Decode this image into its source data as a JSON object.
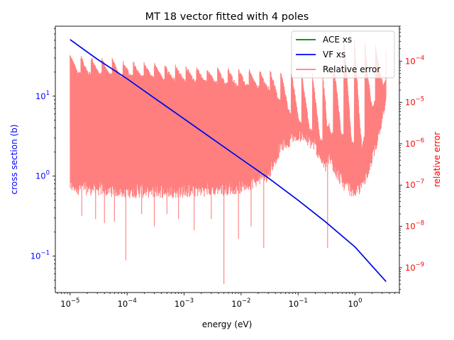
{
  "chart_data": {
    "type": "line",
    "title": "MT 18 vector fitted with 4 poles",
    "xlabel": "energy (eV)",
    "ylabel_left": "cross section (b)",
    "ylabel_right": "relative error",
    "x_scale": "log",
    "y_left_scale": "log",
    "y_right_scale": "log",
    "xlim": [
      5.5e-06,
      6.0
    ],
    "ylim_left": [
      0.035,
      75
    ],
    "ylim_right": [
      2.5e-10,
      0.0007
    ],
    "x_ticks": [
      {
        "value": 1e-05,
        "base": "10",
        "exp": "−5"
      },
      {
        "value": 0.0001,
        "base": "10",
        "exp": "−4"
      },
      {
        "value": 0.001,
        "base": "10",
        "exp": "−3"
      },
      {
        "value": 0.01,
        "base": "10",
        "exp": "−2"
      },
      {
        "value": 0.1,
        "base": "10",
        "exp": "−1"
      },
      {
        "value": 1,
        "base": "10",
        "exp": "0"
      }
    ],
    "y_left_ticks": [
      {
        "value": 0.1,
        "base": "10",
        "exp": "−1"
      },
      {
        "value": 1,
        "base": "10",
        "exp": "0"
      },
      {
        "value": 10,
        "base": "10",
        "exp": "1"
      }
    ],
    "y_right_ticks": [
      {
        "value": 1e-09,
        "base": "10",
        "exp": "−9"
      },
      {
        "value": 1e-08,
        "base": "10",
        "exp": "−8"
      },
      {
        "value": 1e-07,
        "base": "10",
        "exp": "−7"
      },
      {
        "value": 1e-06,
        "base": "10",
        "exp": "−6"
      },
      {
        "value": 1e-05,
        "base": "10",
        "exp": "−5"
      },
      {
        "value": 0.0001,
        "base": "10",
        "exp": "−4"
      }
    ],
    "legend_position": "top-right",
    "series": [
      {
        "name": "ACE xs",
        "axis": "left",
        "color": "#008000",
        "x": [
          1e-05,
          3e-05,
          0.0001,
          0.0003,
          0.001,
          0.003,
          0.01,
          0.03,
          0.1,
          0.3,
          1,
          3.5
        ],
        "y": [
          51,
          29,
          16.5,
          9.5,
          5.2,
          3.0,
          1.64,
          0.95,
          0.5,
          0.27,
          0.13,
          0.048
        ]
      },
      {
        "name": "VF xs",
        "axis": "left",
        "color": "#0000ff",
        "x": [
          1e-05,
          3e-05,
          0.0001,
          0.0003,
          0.001,
          0.003,
          0.01,
          0.03,
          0.1,
          0.3,
          1,
          3.5
        ],
        "y": [
          51,
          29,
          16.5,
          9.5,
          5.2,
          3.0,
          1.64,
          0.95,
          0.5,
          0.27,
          0.13,
          0.048
        ]
      },
      {
        "name": "Relative error",
        "axis": "right",
        "color": "#ff0000",
        "opacity": 0.5,
        "x_range": [
          1e-05,
          3.5
        ],
        "sawtooth_cycles": 30,
        "peak_levels": [
          [
            1e-05,
            0.00015
          ],
          [
            2e-05,
            0.00014
          ],
          [
            5e-05,
            0.00012
          ],
          [
            0.0001,
            0.000105
          ],
          [
            0.001,
            8e-05
          ],
          [
            0.03,
            6e-05
          ],
          [
            0.2,
            5e-05
          ],
          [
            0.35,
            4e-05
          ],
          [
            0.6,
            0.0004
          ],
          [
            1.5,
            0.0003
          ],
          [
            3.5,
            0.0002
          ]
        ],
        "band_top": [
          [
            1e-05,
            6e-05
          ],
          [
            0.0001,
            5e-05
          ],
          [
            0.001,
            4e-05
          ],
          [
            0.03,
            2.5e-05
          ],
          [
            0.1,
            4e-06
          ],
          [
            0.2,
            2e-06
          ],
          [
            0.3,
            1e-06
          ],
          [
            0.32,
            3e-07
          ],
          [
            0.35,
            2e-06
          ],
          [
            0.5,
            2e-06
          ],
          [
            0.7,
            2e-06
          ],
          [
            1.0,
            1e-06
          ],
          [
            1.2,
            5e-07
          ],
          [
            1.5,
            2e-06
          ],
          [
            2.5,
            2e-05
          ],
          [
            3.5,
            4e-05
          ]
        ],
        "band_bottom": [
          [
            1e-05,
            1e-07
          ],
          [
            0.0001,
            8e-08
          ],
          [
            0.001,
            8e-08
          ],
          [
            0.01,
            1e-07
          ],
          [
            0.03,
            2e-07
          ],
          [
            0.05,
            1e-06
          ],
          [
            0.1,
            2e-06
          ],
          [
            0.2,
            1e-06
          ],
          [
            0.3,
            3e-07
          ],
          [
            0.35,
            5e-07
          ],
          [
            0.5,
            2e-07
          ],
          [
            0.7,
            1e-07
          ],
          [
            1.0,
            8e-08
          ],
          [
            1.3,
            1e-07
          ],
          [
            2.0,
            5e-07
          ],
          [
            3.5,
            1e-05
          ]
        ],
        "dips": [
          [
            1.6e-05,
            1.8e-08
          ],
          [
            2.8e-05,
            1.5e-08
          ],
          [
            4e-05,
            1.2e-08
          ],
          [
            6e-05,
            1.3e-08
          ],
          [
            9.5e-05,
            1.5e-09
          ],
          [
            0.00018,
            2e-08
          ],
          [
            0.0003,
            1e-08
          ],
          [
            0.0005,
            2e-08
          ],
          [
            0.0008,
            1.5e-08
          ],
          [
            0.0015,
            8e-09
          ],
          [
            0.003,
            1.5e-08
          ],
          [
            0.005,
            4e-10
          ],
          [
            0.009,
            5e-09
          ],
          [
            0.015,
            1e-08
          ],
          [
            0.025,
            3e-09
          ],
          [
            0.33,
            3e-09
          ]
        ]
      }
    ]
  }
}
